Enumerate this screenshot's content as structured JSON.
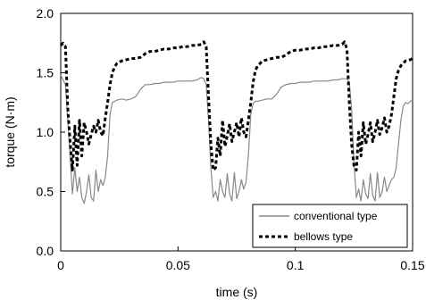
{
  "chart_data": {
    "type": "line",
    "xlabel": "time (s)",
    "ylabel": "torque (N·m)",
    "xlim": [
      0,
      0.15
    ],
    "ylim": [
      0,
      2.0
    ],
    "x_ticks": [
      "0",
      "0.05",
      "0.1",
      "0.15"
    ],
    "y_ticks": [
      "0.0",
      "0.5",
      "1.0",
      "1.5",
      "2.0"
    ],
    "grid": false,
    "legend_position": "bottom-right",
    "series": [
      {
        "name": "conventional type",
        "color": "#888888",
        "style": "solid",
        "x": [
          0,
          0.002,
          0.004,
          0.005,
          0.006,
          0.007,
          0.008,
          0.009,
          0.01,
          0.011,
          0.012,
          0.013,
          0.014,
          0.015,
          0.016,
          0.017,
          0.018,
          0.019,
          0.02,
          0.021,
          0.022,
          0.024,
          0.026,
          0.028,
          0.03,
          0.032,
          0.034,
          0.036,
          0.038,
          0.04,
          0.042,
          0.044,
          0.046,
          0.048,
          0.05,
          0.052,
          0.054,
          0.056,
          0.058,
          0.06,
          0.061,
          0.062,
          0.063,
          0.064,
          0.065,
          0.066,
          0.067,
          0.068,
          0.069,
          0.07,
          0.071,
          0.072,
          0.073,
          0.074,
          0.075,
          0.076,
          0.077,
          0.078,
          0.079,
          0.08,
          0.081,
          0.082,
          0.083,
          0.084,
          0.086,
          0.088,
          0.09,
          0.092,
          0.094,
          0.096,
          0.098,
          0.1,
          0.102,
          0.104,
          0.106,
          0.108,
          0.11,
          0.112,
          0.114,
          0.116,
          0.118,
          0.12,
          0.122,
          0.123,
          0.124,
          0.125,
          0.126,
          0.127,
          0.128,
          0.129,
          0.13,
          0.131,
          0.132,
          0.133,
          0.134,
          0.135,
          0.136,
          0.137,
          0.138,
          0.139,
          0.14,
          0.141,
          0.142,
          0.143,
          0.144,
          0.145,
          0.146,
          0.147,
          0.148,
          0.149,
          0.15
        ],
        "values": [
          1.48,
          1.4,
          0.8,
          0.48,
          0.7,
          0.5,
          0.62,
          0.45,
          0.4,
          0.5,
          0.64,
          0.45,
          0.42,
          0.68,
          0.5,
          0.6,
          0.55,
          0.62,
          0.8,
          1.15,
          1.25,
          1.27,
          1.28,
          1.27,
          1.28,
          1.3,
          1.36,
          1.4,
          1.4,
          1.41,
          1.41,
          1.42,
          1.42,
          1.42,
          1.43,
          1.43,
          1.43,
          1.43,
          1.44,
          1.46,
          1.45,
          1.4,
          1.1,
          0.7,
          0.45,
          0.5,
          0.42,
          0.6,
          0.5,
          0.45,
          0.65,
          0.48,
          0.42,
          0.66,
          0.44,
          0.5,
          0.6,
          0.52,
          0.58,
          0.8,
          1.15,
          1.24,
          1.26,
          1.26,
          1.27,
          1.28,
          1.28,
          1.32,
          1.38,
          1.4,
          1.41,
          1.41,
          1.42,
          1.42,
          1.42,
          1.43,
          1.43,
          1.43,
          1.43,
          1.44,
          1.44,
          1.45,
          1.45,
          1.42,
          1.2,
          0.75,
          0.45,
          0.52,
          0.42,
          0.6,
          0.48,
          0.44,
          0.65,
          0.47,
          0.42,
          0.66,
          0.45,
          0.5,
          0.62,
          0.5,
          0.55,
          0.6,
          0.62,
          0.7,
          0.9,
          1.1,
          1.22,
          1.25,
          1.24,
          1.26,
          1.27
        ]
      },
      {
        "name": "bellows type",
        "color": "#000000",
        "style": "dashed",
        "x": [
          0,
          0.001,
          0.002,
          0.003,
          0.004,
          0.005,
          0.006,
          0.007,
          0.008,
          0.009,
          0.01,
          0.011,
          0.012,
          0.013,
          0.014,
          0.015,
          0.016,
          0.017,
          0.018,
          0.019,
          0.02,
          0.021,
          0.022,
          0.023,
          0.024,
          0.026,
          0.028,
          0.03,
          0.032,
          0.034,
          0.036,
          0.038,
          0.04,
          0.042,
          0.044,
          0.046,
          0.048,
          0.05,
          0.052,
          0.054,
          0.056,
          0.058,
          0.06,
          0.061,
          0.062,
          0.063,
          0.064,
          0.065,
          0.066,
          0.067,
          0.068,
          0.069,
          0.07,
          0.071,
          0.072,
          0.073,
          0.074,
          0.075,
          0.076,
          0.077,
          0.078,
          0.079,
          0.08,
          0.081,
          0.082,
          0.083,
          0.084,
          0.085,
          0.086,
          0.088,
          0.09,
          0.092,
          0.094,
          0.096,
          0.098,
          0.1,
          0.102,
          0.104,
          0.106,
          0.108,
          0.11,
          0.112,
          0.114,
          0.116,
          0.118,
          0.12,
          0.121,
          0.122,
          0.123,
          0.124,
          0.125,
          0.126,
          0.127,
          0.128,
          0.129,
          0.13,
          0.131,
          0.132,
          0.133,
          0.134,
          0.135,
          0.136,
          0.137,
          0.138,
          0.139,
          0.14,
          0.141,
          0.142,
          0.143,
          0.144,
          0.145,
          0.146,
          0.147,
          0.148,
          0.149,
          0.15
        ],
        "values": [
          1.73,
          1.75,
          1.72,
          1.2,
          0.92,
          0.68,
          1.05,
          0.72,
          1.1,
          0.8,
          1.08,
          1.0,
          0.9,
          0.98,
          1.05,
          1.0,
          1.1,
          1.0,
          0.97,
          1.12,
          1.25,
          1.4,
          1.5,
          1.55,
          1.58,
          1.6,
          1.61,
          1.62,
          1.62,
          1.63,
          1.66,
          1.68,
          1.68,
          1.69,
          1.7,
          1.7,
          1.71,
          1.71,
          1.72,
          1.72,
          1.73,
          1.73,
          1.74,
          1.76,
          1.72,
          1.3,
          0.9,
          0.68,
          0.7,
          0.95,
          0.8,
          1.1,
          0.88,
          0.97,
          1.07,
          0.92,
          1.0,
          1.08,
          0.96,
          1.12,
          1.0,
          0.96,
          1.1,
          1.25,
          1.42,
          1.52,
          1.56,
          1.58,
          1.6,
          1.61,
          1.62,
          1.63,
          1.63,
          1.65,
          1.68,
          1.69,
          1.69,
          1.7,
          1.7,
          1.71,
          1.71,
          1.72,
          1.72,
          1.73,
          1.73,
          1.74,
          1.76,
          1.7,
          1.25,
          0.9,
          0.72,
          0.68,
          1.0,
          0.8,
          1.08,
          0.9,
          0.98,
          1.08,
          0.92,
          1.0,
          1.1,
          0.98,
          1.04,
          1.12,
          1.0,
          1.05,
          1.15,
          1.3,
          1.45,
          1.52,
          1.56,
          1.58,
          1.6,
          1.6,
          1.61,
          1.62
        ]
      }
    ]
  }
}
